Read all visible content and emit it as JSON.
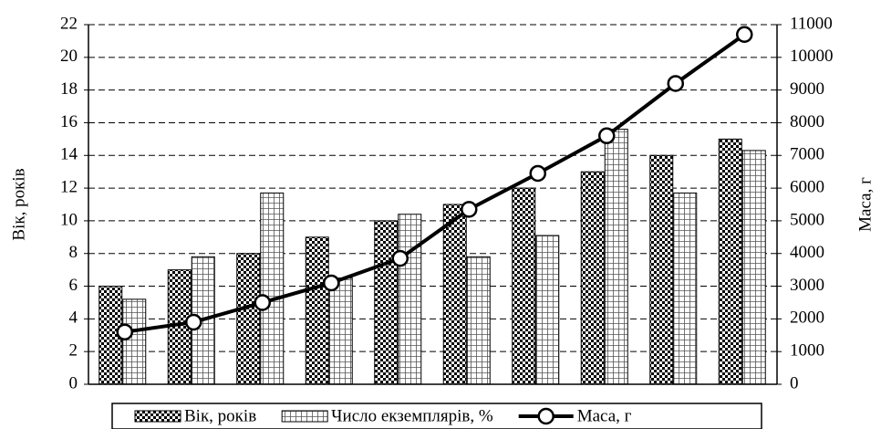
{
  "chart_data": {
    "type": "bar_line",
    "ylabel": "Вік, років",
    "y2label": "Маса, г",
    "series": [
      {
        "name": "Вік, років",
        "type": "bar",
        "color": "#000000",
        "values": [
          6,
          7,
          8,
          9,
          10,
          11,
          12,
          13,
          14,
          15
        ]
      },
      {
        "name": "Число екземплярів, %",
        "type": "bar",
        "color": "#555555",
        "values": [
          5.2,
          7.8,
          11.7,
          6.5,
          10.4,
          7.8,
          9.1,
          15.6,
          11.7,
          14.3
        ]
      },
      {
        "name": "Маса, г",
        "type": "line",
        "axis": "y2",
        "color": "#000000",
        "values": [
          1600,
          1900,
          2500,
          3100,
          3850,
          5350,
          6450,
          7600,
          9200,
          10700
        ]
      }
    ],
    "ylim": [
      0,
      22
    ],
    "yticks": [
      0,
      2,
      4,
      6,
      8,
      10,
      12,
      14,
      16,
      18,
      20,
      22
    ],
    "y2lim": [
      0,
      11000
    ],
    "y2ticks": [
      0,
      1000,
      2000,
      3000,
      4000,
      5000,
      6000,
      7000,
      8000,
      9000,
      10000,
      11000
    ],
    "grid": true,
    "legend": "bottom"
  }
}
